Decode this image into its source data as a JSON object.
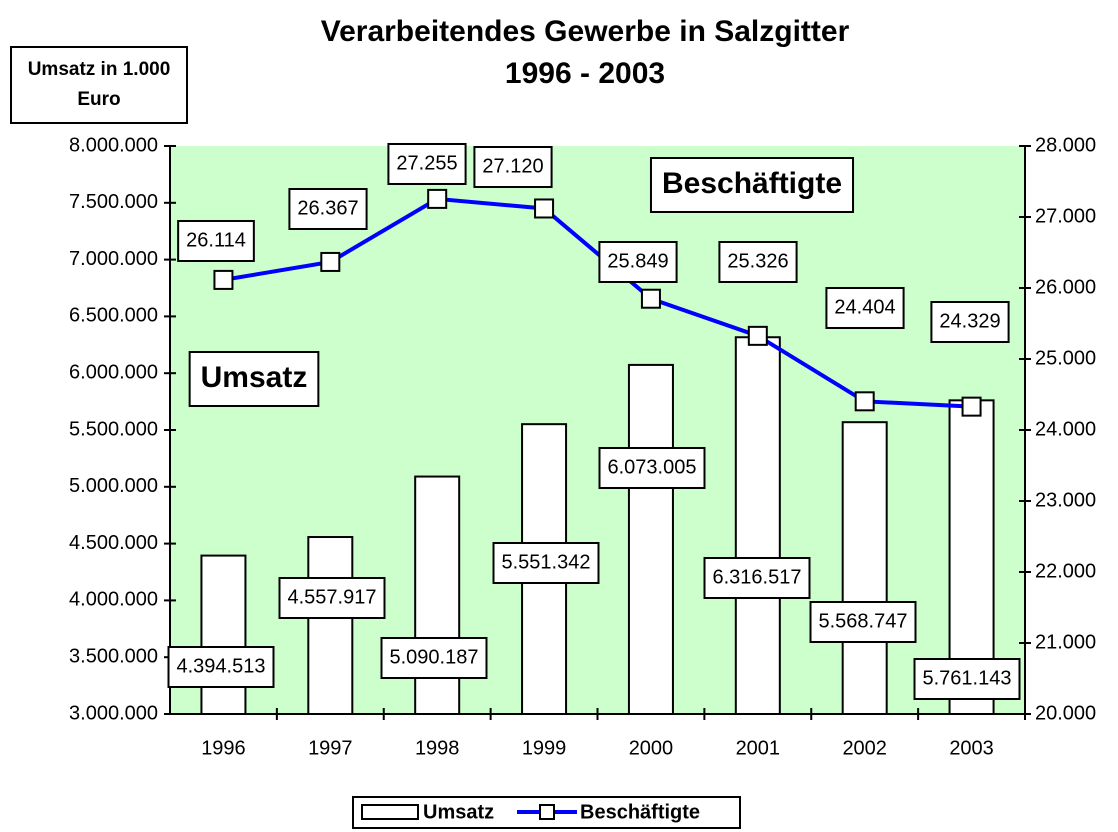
{
  "chart_data": {
    "type": "bar-line",
    "title": "Verarbeitendes Gewerbe in Salzgitter",
    "subtitle": "1996 - 2003",
    "y_label": "Umsatz in 1.000 Euro",
    "categories": [
      "1996",
      "1997",
      "1998",
      "1999",
      "2000",
      "2001",
      "2002",
      "2003"
    ],
    "series": [
      {
        "name": "Umsatz",
        "type": "bar",
        "color": "#ffffff",
        "axis": "y",
        "values": [
          4394513,
          4557917,
          5090187,
          5551342,
          6073005,
          6316517,
          5568747,
          5761143
        ],
        "value_labels": [
          "4.394.513",
          "4.557.917",
          "5.090.187",
          "5.551.342",
          "6.073.005",
          "6.316.517",
          "5.568.747",
          "5.761.143"
        ]
      },
      {
        "name": "Beschäftigte",
        "type": "line",
        "color": "#0000ff",
        "axis": "y2",
        "values": [
          26114,
          26367,
          27255,
          27120,
          25849,
          25326,
          24404,
          24329
        ],
        "value_labels": [
          "26.114",
          "26.367",
          "27.255",
          "27.120",
          "25.849",
          "25.326",
          "24.404",
          "24.329"
        ]
      }
    ],
    "ylim": [
      3000000,
      8000000
    ],
    "yticks": [
      {
        "value": 3000000,
        "label": "3.000.000"
      },
      {
        "value": 3500000,
        "label": "3.500.000"
      },
      {
        "value": 4000000,
        "label": "4.000.000"
      },
      {
        "value": 4500000,
        "label": "4.500.000"
      },
      {
        "value": 5000000,
        "label": "5.000.000"
      },
      {
        "value": 5500000,
        "label": "5.500.000"
      },
      {
        "value": 6000000,
        "label": "6.000.000"
      },
      {
        "value": 6500000,
        "label": "6.500.000"
      },
      {
        "value": 7000000,
        "label": "7.000.000"
      },
      {
        "value": 7500000,
        "label": "7.500.000"
      },
      {
        "value": 8000000,
        "label": "8.000.000"
      }
    ],
    "y2lim": [
      20000,
      28000
    ],
    "y2ticks": [
      {
        "value": 20000,
        "label": "20.000"
      },
      {
        "value": 21000,
        "label": "21.000"
      },
      {
        "value": 22000,
        "label": "22.000"
      },
      {
        "value": 23000,
        "label": "23.000"
      },
      {
        "value": 24000,
        "label": "24.000"
      },
      {
        "value": 25000,
        "label": "25.000"
      },
      {
        "value": 26000,
        "label": "26.000"
      },
      {
        "value": 27000,
        "label": "27.000"
      },
      {
        "value": 28000,
        "label": "28.000"
      }
    ],
    "plot_background": "#ccffcc",
    "legend": "bottom"
  }
}
